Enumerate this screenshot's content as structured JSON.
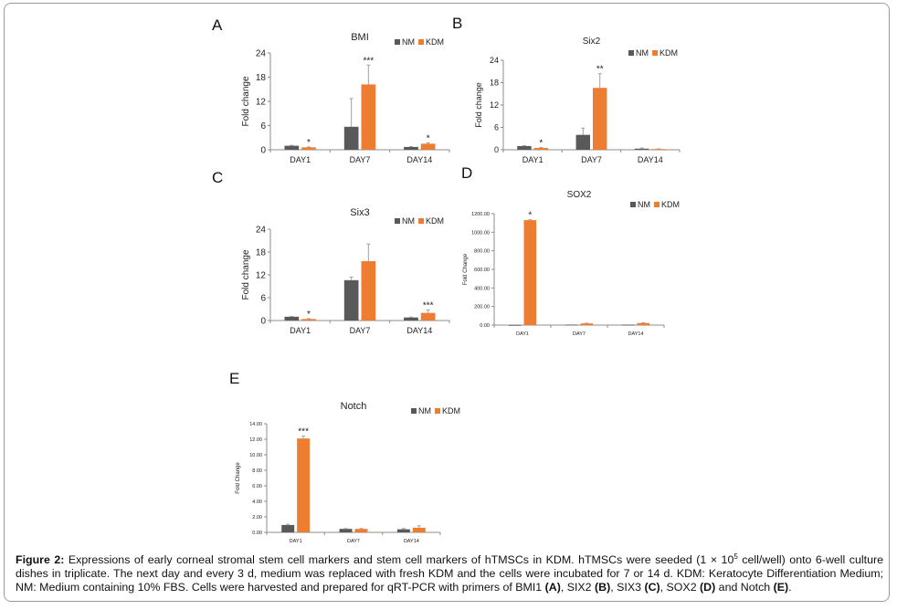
{
  "colors": {
    "NM": "#595959",
    "KDM": "#ed7d31",
    "axis": "#8c8c8c",
    "text": "#222222"
  },
  "panels": [
    {
      "letter": "A"
    },
    {
      "letter": "B"
    },
    {
      "letter": "C"
    },
    {
      "letter": "D"
    },
    {
      "letter": "E"
    }
  ],
  "caption": {
    "label": "Figure 2:",
    "part1": " Expressions of early corneal stromal stem cell markers and stem cell markers of hTMSCs in KDM. hTMSCs were seeded (1 × 10",
    "sup": "5",
    "part2": " cell/well) onto 6-well culture dishes in triplicate. The next day and every 3 d, medium was replaced with fresh KDM and the cells were incubated for 7 or 14 d. KDM: Keratocyte Differentiation Medium; NM: Medium containing 10% FBS. Cells were harvested and prepared for qRT-PCR with primers of BMI1 ",
    "A": "(A)",
    "sep1": ", SIX2 ",
    "B": "(B)",
    "sep2": ", SIX3 ",
    "C": "(C)",
    "sep3": ", SOX2 ",
    "D": "(D)",
    "sep4": " and Notch ",
    "E": "(E)",
    "end": "."
  },
  "chart_data": [
    {
      "panel": "A",
      "type": "bar",
      "title": "BMI",
      "ylabel": "Fold change",
      "xlabel": "",
      "categories": [
        "DAY1",
        "DAY7",
        "DAY14"
      ],
      "ylim": [
        0,
        24
      ],
      "yticks": [
        "0",
        "6",
        "12",
        "18",
        "24"
      ],
      "legend": [
        "NM",
        "KDM"
      ],
      "legend_position": "top-right",
      "series": [
        {
          "name": "NM",
          "values": [
            1.0,
            5.7,
            0.7
          ],
          "errors": [
            0.1,
            7.0,
            0.1
          ]
        },
        {
          "name": "KDM",
          "values": [
            0.6,
            16.2,
            1.5
          ],
          "errors": [
            0.1,
            4.8,
            0.2
          ]
        }
      ],
      "annotations": [
        {
          "category": "DAY1",
          "series": "KDM",
          "text": "*"
        },
        {
          "category": "DAY7",
          "series": "KDM",
          "text": "***"
        },
        {
          "category": "DAY14",
          "series": "KDM",
          "text": "*"
        }
      ]
    },
    {
      "panel": "B",
      "type": "bar",
      "title": "Six2",
      "ylabel": "Fold change",
      "xlabel": "",
      "categories": [
        "DAY1",
        "DAY7",
        "DAY14"
      ],
      "ylim": [
        0,
        24
      ],
      "yticks": [
        "0",
        "6",
        "12",
        "18",
        "24"
      ],
      "legend": [
        "NM",
        "KDM"
      ],
      "legend_position": "top-right",
      "series": [
        {
          "name": "NM",
          "values": [
            1.0,
            4.0,
            0.3
          ],
          "errors": [
            0.1,
            1.8,
            0.2
          ]
        },
        {
          "name": "KDM",
          "values": [
            0.5,
            16.6,
            0.2
          ],
          "errors": [
            0.1,
            3.8,
            0.05
          ]
        }
      ],
      "annotations": [
        {
          "category": "DAY1",
          "series": "KDM",
          "text": "*"
        },
        {
          "category": "DAY7",
          "series": "KDM",
          "text": "**"
        }
      ]
    },
    {
      "panel": "C",
      "type": "bar",
      "title": "Six3",
      "ylabel": "Fold change",
      "xlabel": "",
      "categories": [
        "DAY1",
        "DAY7",
        "DAY14"
      ],
      "ylim": [
        0,
        24
      ],
      "yticks": [
        "0",
        "6",
        "12",
        "18",
        "24"
      ],
      "legend": [
        "NM",
        "KDM"
      ],
      "legend_position": "top-right",
      "series": [
        {
          "name": "NM",
          "values": [
            1.0,
            10.6,
            0.8
          ],
          "errors": [
            0.1,
            0.8,
            0.1
          ]
        },
        {
          "name": "KDM",
          "values": [
            0.4,
            15.6,
            2.0
          ],
          "errors": [
            0.1,
            4.5,
            0.8
          ]
        }
      ],
      "annotations": [
        {
          "category": "DAY1",
          "series": "KDM",
          "text": "*"
        },
        {
          "category": "DAY14",
          "series": "KDM",
          "text": "***"
        }
      ]
    },
    {
      "panel": "D",
      "type": "bar",
      "title": "SOX2",
      "ylabel": "Fold Change",
      "xlabel": "",
      "categories": [
        "DAY1",
        "DAY7",
        "DAY14"
      ],
      "ylim": [
        0,
        1200
      ],
      "yticks": [
        "0.00",
        "200.00",
        "400.00",
        "600.00",
        "800.00",
        "1000.00",
        "1200.00"
      ],
      "legend": [
        "NM",
        "KDM"
      ],
      "legend_position": "top-right",
      "series": [
        {
          "name": "NM",
          "values": [
            1.0,
            5.0,
            5.0
          ],
          "errors": [
            0,
            0,
            0
          ]
        },
        {
          "name": "KDM",
          "values": [
            1130,
            18,
            22
          ],
          "errors": [
            5,
            3,
            3
          ]
        }
      ],
      "annotations": [
        {
          "category": "DAY1",
          "series": "KDM",
          "text": "*"
        }
      ]
    },
    {
      "panel": "E",
      "type": "bar",
      "title": "Notch",
      "ylabel": "Fold Change",
      "xlabel": "",
      "categories": [
        "DAY1",
        "DAY7",
        "DAY14"
      ],
      "ylim": [
        0,
        14
      ],
      "yticks": [
        "0.00",
        "2.00",
        "4.00",
        "6.00",
        "8.00",
        "10.00",
        "12.00",
        "14.00"
      ],
      "legend": [
        "NM",
        "KDM"
      ],
      "legend_position": "top-right",
      "series": [
        {
          "name": "NM",
          "values": [
            0.95,
            0.45,
            0.4
          ],
          "errors": [
            0.1,
            0.05,
            0.1
          ]
        },
        {
          "name": "KDM",
          "values": [
            12.1,
            0.45,
            0.6
          ],
          "errors": [
            0.3,
            0.05,
            0.25
          ]
        }
      ],
      "annotations": [
        {
          "category": "DAY1",
          "series": "KDM",
          "text": "***"
        }
      ]
    }
  ]
}
